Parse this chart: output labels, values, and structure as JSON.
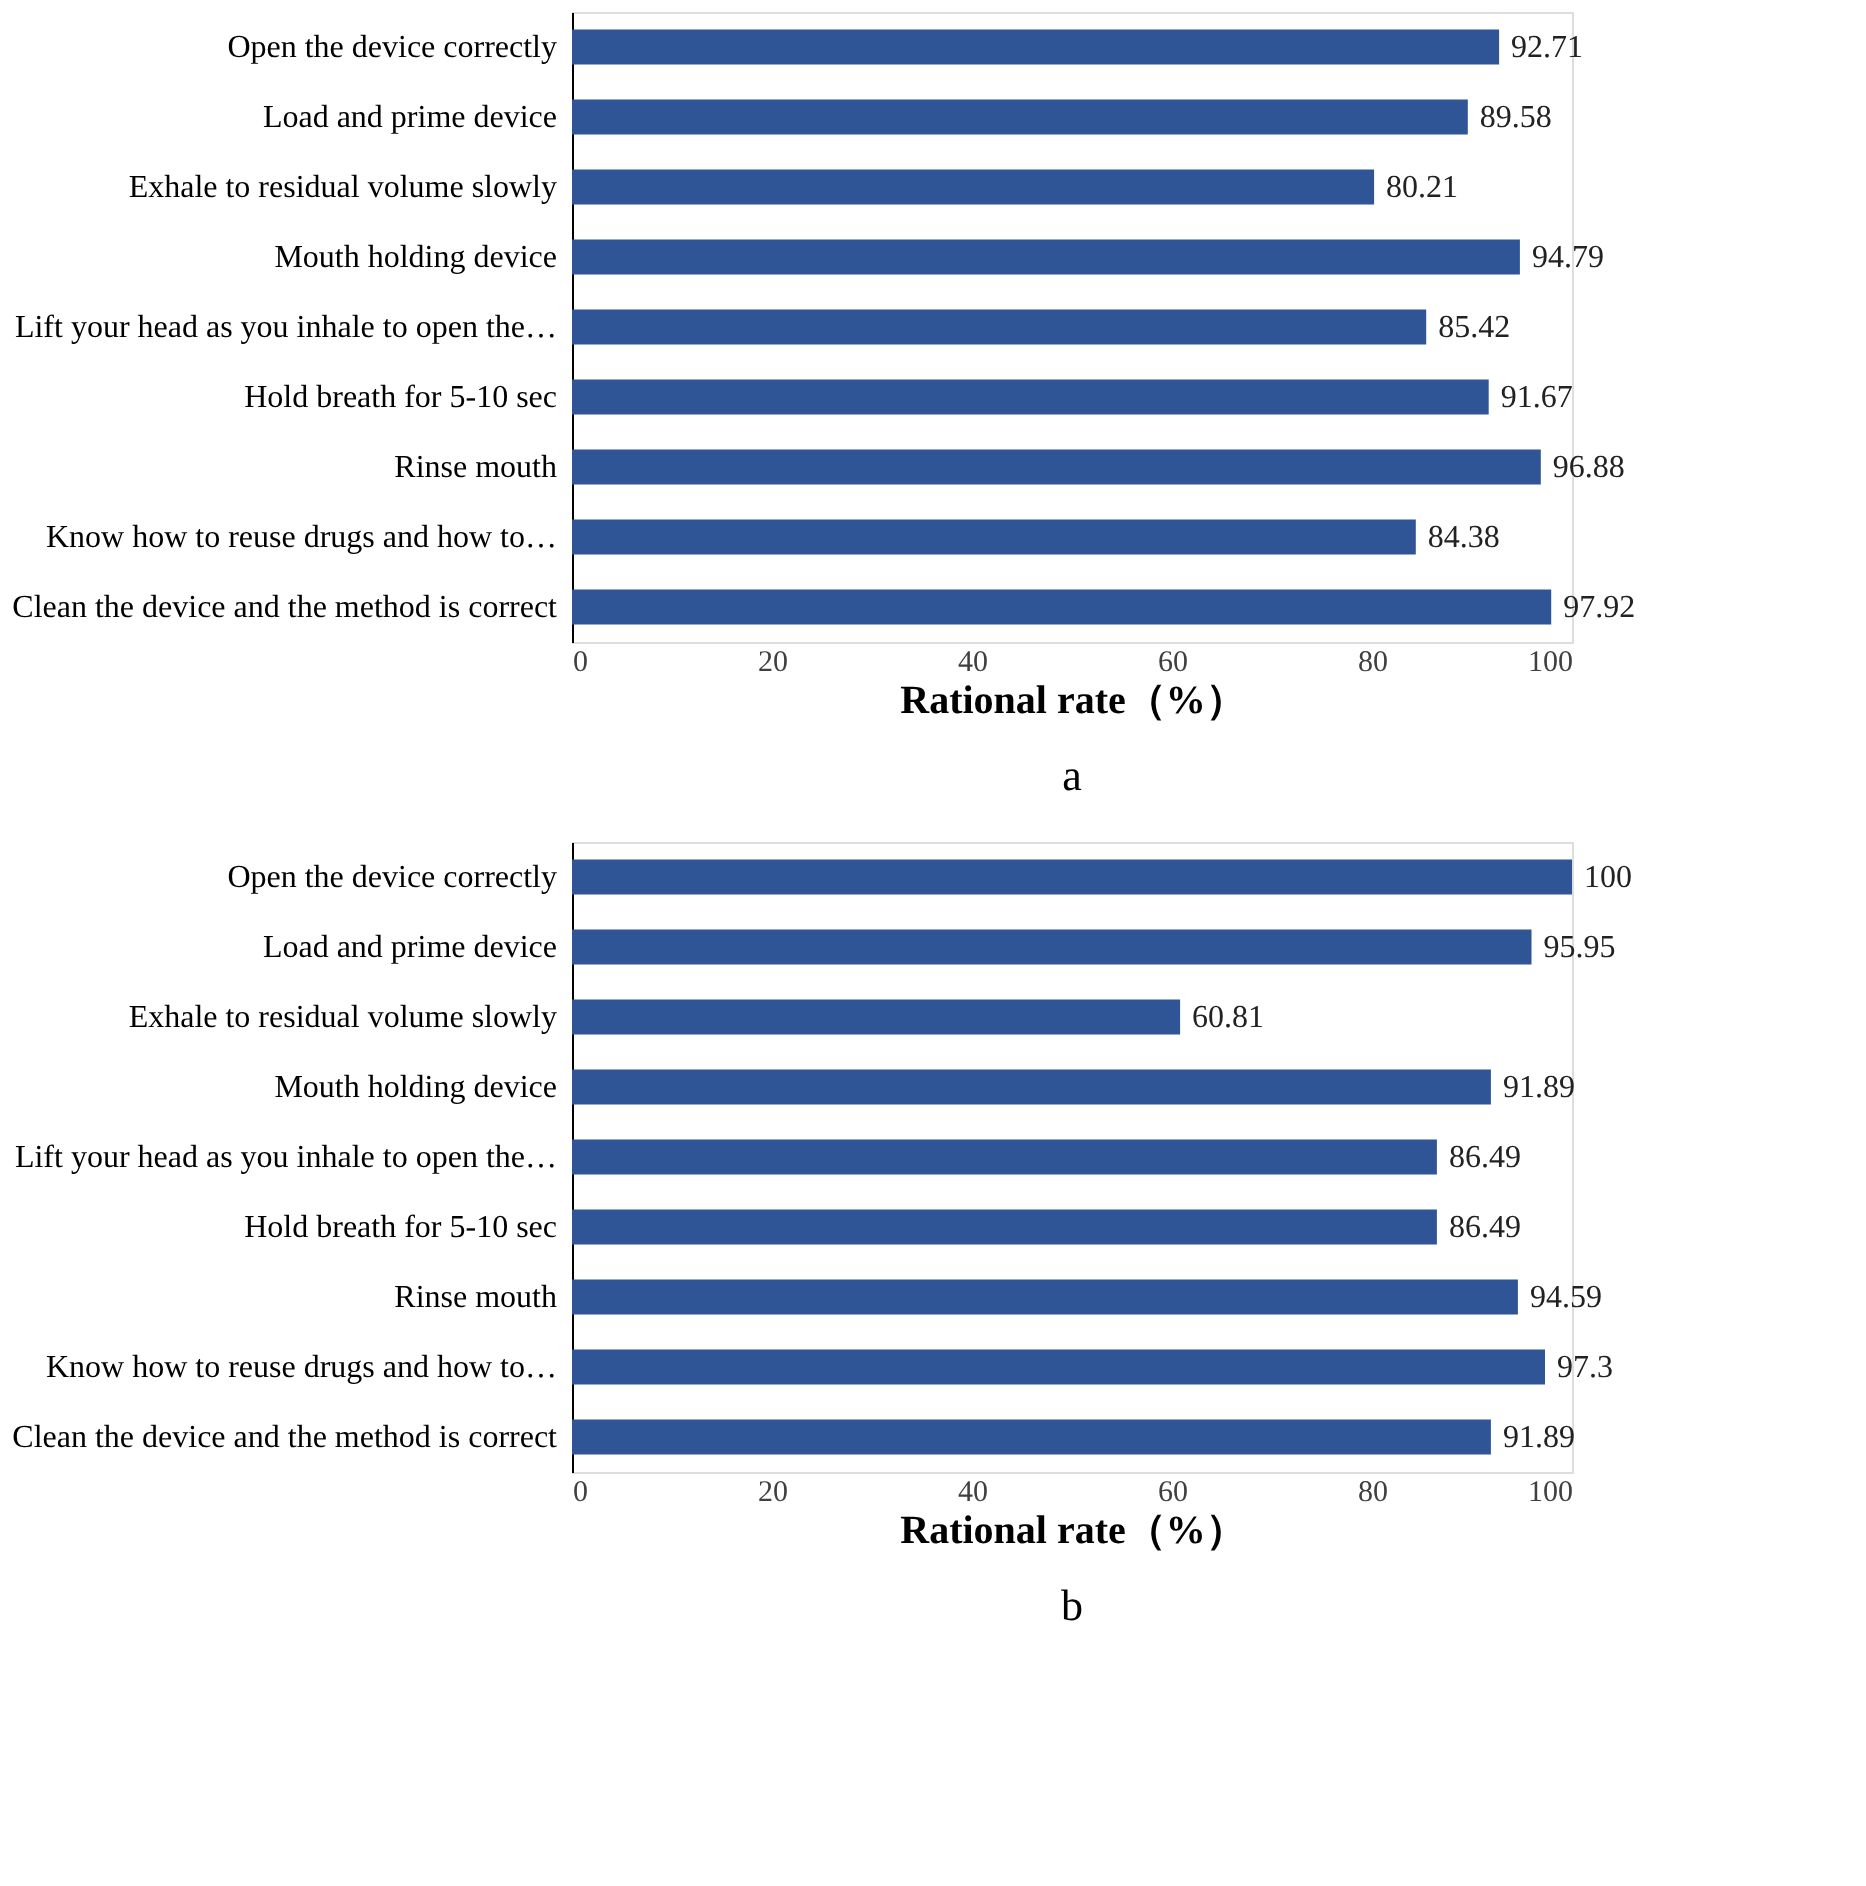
{
  "chart_data": [
    {
      "type": "bar",
      "orientation": "horizontal",
      "categories": [
        "Open the device correctly",
        "Load and prime device",
        "Exhale to residual volume slowly",
        "Mouth holding device",
        "Lift your head as you inhale to open the…",
        "Hold breath for 5-10 sec",
        "Rinse mouth",
        "Know how to reuse drugs and how to…",
        "Clean the device and the method is correct"
      ],
      "values": [
        92.71,
        89.58,
        80.21,
        94.79,
        85.42,
        91.67,
        96.88,
        84.38,
        97.92
      ],
      "color": "#2f5597",
      "data_labels": true,
      "xlabel": "Rational rate（%）",
      "xlim": [
        0,
        100
      ],
      "xticks": [
        0,
        20,
        40,
        60,
        80,
        100
      ],
      "annotations": [
        "a"
      ]
    },
    {
      "type": "bar",
      "orientation": "horizontal",
      "categories": [
        "Open the device correctly",
        "Load and prime device",
        "Exhale to residual volume slowly",
        "Mouth holding device",
        "Lift your head as you inhale to open the…",
        "Hold breath for 5-10 sec",
        "Rinse mouth",
        "Know how to reuse drugs and how to…",
        "Clean the device and the method is correct"
      ],
      "values": [
        100,
        95.95,
        60.81,
        91.89,
        86.49,
        86.49,
        94.59,
        97.3,
        91.89
      ],
      "color": "#2f5597",
      "data_labels": true,
      "xlabel": "Rational rate（%）",
      "xlim": [
        0,
        100
      ],
      "xticks": [
        0,
        20,
        40,
        60,
        80,
        100
      ],
      "annotations": [
        "b"
      ]
    }
  ]
}
